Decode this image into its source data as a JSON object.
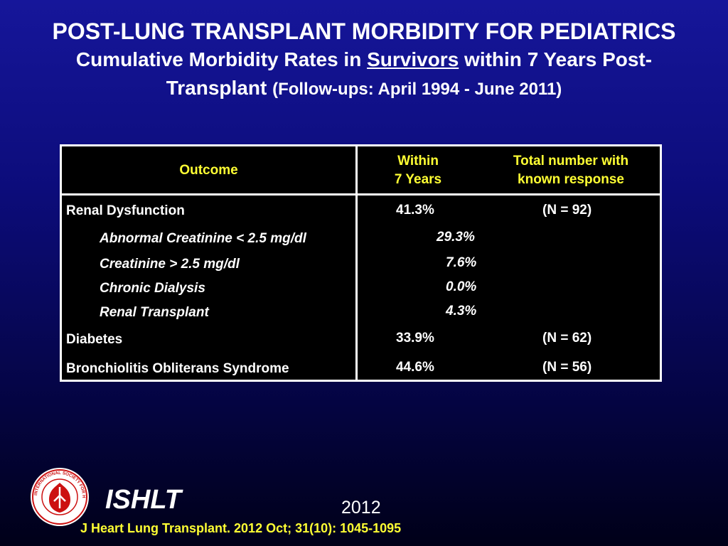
{
  "slide": {
    "title_line1": "POST-LUNG TRANSPLANT MORBIDITY FOR PEDIATRICS",
    "subtitle_part1": "Cumulative Morbidity Rates in ",
    "subtitle_underlined": "Survivors",
    "subtitle_part2": " within 7 Years Post-",
    "subtitle_line3": "Transplant ",
    "subtitle_followup": "(Follow-ups: April 1994 - June 2011)"
  },
  "table": {
    "headers": {
      "outcome": "Outcome",
      "within_line1": "Within",
      "within_line2": "7 Years",
      "total_line1": "Total number with",
      "total_line2": "known response"
    },
    "rows": [
      {
        "label": "Renal Dysfunction",
        "value": "41.3%",
        "n": "(N = 92)"
      },
      {
        "label": "Abnormal Creatinine < 2.5 mg/dl",
        "value": "29.3%"
      },
      {
        "label": "Creatinine > 2.5 mg/dl",
        "value": "7.6%"
      },
      {
        "label": "Chronic Dialysis",
        "value": "0.0%"
      },
      {
        "label": "Renal Transplant",
        "value": "4.3%"
      },
      {
        "label": "Diabetes",
        "value": "33.9%",
        "n": "(N = 62)"
      },
      {
        "label": "Bronchiolitis Obliterans Syndrome",
        "value": "44.6%",
        "n": "(N = 56)"
      }
    ]
  },
  "footer": {
    "org": "ISHLT",
    "year": "2012",
    "citation": "J Heart Lung Transplant.  2012 Oct; 31(10): 1045-1095",
    "logo_text": "INTERNATIONAL SOCIETY FOR HEART & LUNG TRANSPLANTATION"
  },
  "colors": {
    "header_text": "#ffff33",
    "citation_text": "#ffff33",
    "table_background": "#000000",
    "slide_background_top": "#16169a",
    "slide_background_bottom": "#000018",
    "logo_red": "#cc1111"
  }
}
